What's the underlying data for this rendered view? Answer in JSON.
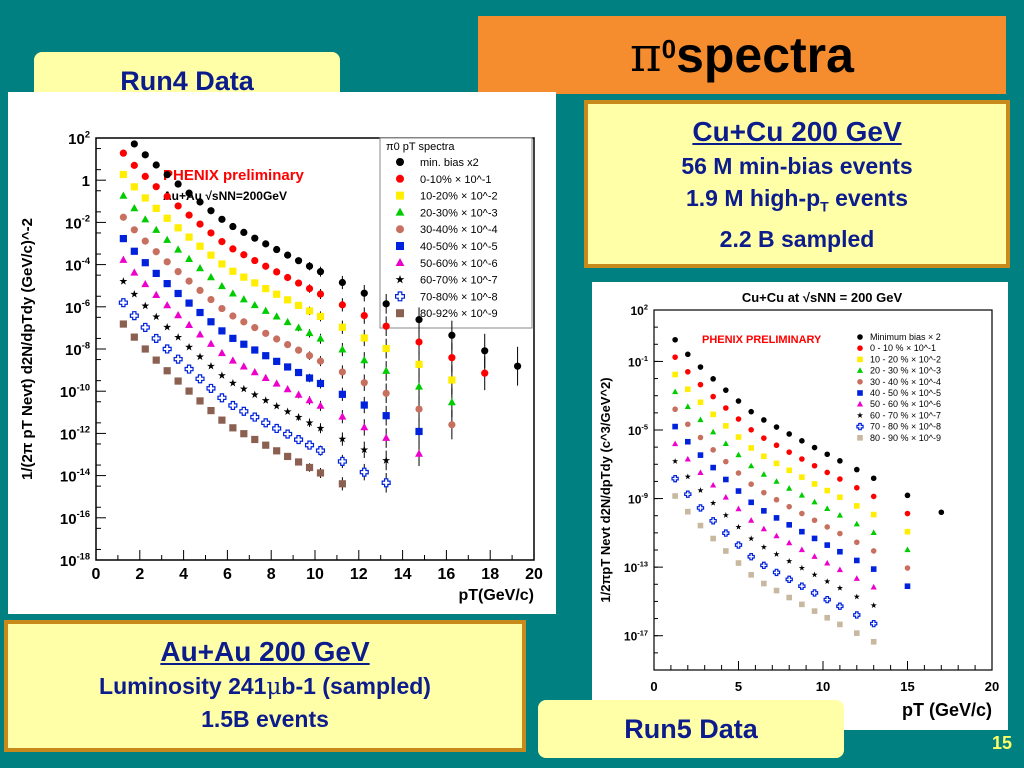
{
  "slide": {
    "title_symbol": "π",
    "title_sup": "0",
    "title_text": " spectra",
    "page_number": "15",
    "run4_label": "Run4 Data",
    "run5_label": "Run5 Data",
    "cucu_box": {
      "heading": "Cu+Cu 200 GeV",
      "line1": "56 M min-bias events",
      "line2_a": "1.9 M high-p",
      "line2_sub": "T",
      "line2_b": " events",
      "line3": "2.2 B sampled"
    },
    "auau_box": {
      "heading": "Au+Au 200 GeV",
      "line1_a": "Luminosity 241",
      "line1_mu": "μ",
      "line1_b": "b-1 (sampled)",
      "line2": "1.5B events"
    }
  },
  "chart_data": [
    {
      "type": "scatter",
      "y_scale": "log",
      "title": "",
      "annotation": "PHENIX preliminary",
      "system_label": "Au+Au √sNN=200GeV",
      "legend_title": "π0 pT spectra",
      "xlabel": "pT(GeV/c)",
      "ylabel": "1/(2π pT Nevt) d2N/dpTdy (GeV/c)^-2",
      "xlim": [
        0,
        20
      ],
      "ylim_exp": [
        -18,
        2
      ],
      "x_ticks": [
        "0",
        "2",
        "4",
        "6",
        "8",
        "10",
        "12",
        "14",
        "16",
        "18",
        "20"
      ],
      "y_ticks": [
        "10^2",
        "1",
        "10^-2",
        "10^-4",
        "10^-6",
        "10^-8",
        "10^-10",
        "10^-12",
        "10^-14",
        "10^-16",
        "10^-18"
      ],
      "legend_position": "top-right",
      "series": [
        {
          "name": "min. bias x2",
          "color": "#000000",
          "marker": "circle",
          "xmax": 19.3,
          "amp": 3.31,
          "A": 1.575,
          "B": 0.69,
          "C": 6.0,
          "D": 0.45
        },
        {
          "name": "0-10% × 10^-1",
          "color": "#ff0000",
          "marker": "circle",
          "xmax": 19.0,
          "amp": 2.31,
          "A": 1.575,
          "B": 0.7,
          "C": 6.0,
          "D": 0.45
        },
        {
          "name": "10-20% × 10^-2",
          "color": "#ffee00",
          "marker": "square",
          "xmax": 17.5,
          "amp": 1.31,
          "A": 1.575,
          "B": 0.71,
          "C": 6.0,
          "D": 0.45
        },
        {
          "name": "20-30% × 10^-3",
          "color": "#00cc00",
          "marker": "triangle",
          "xmax": 17.0,
          "amp": 0.31,
          "A": 1.575,
          "B": 0.72,
          "C": 6.0,
          "D": 0.45
        },
        {
          "name": "30-40% × 10^-4",
          "color": "#c87060",
          "marker": "circle",
          "xmax": 16.5,
          "amp": -0.69,
          "A": 1.575,
          "B": 0.73,
          "C": 6.0,
          "D": 0.45
        },
        {
          "name": "40-50% × 10^-5",
          "color": "#0022dd",
          "marker": "square",
          "xmax": 16.0,
          "amp": -1.69,
          "A": 1.575,
          "B": 0.74,
          "C": 6.0,
          "D": 0.45
        },
        {
          "name": "50-60% × 10^-6",
          "color": "#ee00cc",
          "marker": "triangle",
          "xmax": 15.0,
          "amp": -2.69,
          "A": 1.575,
          "B": 0.75,
          "C": 6.0,
          "D": 0.45
        },
        {
          "name": "60-70% × 10^-7",
          "color": "#000000",
          "marker": "star",
          "xmax": 14.0,
          "amp": -3.69,
          "A": 1.575,
          "B": 0.76,
          "C": 6.0,
          "D": 0.45
        },
        {
          "name": "70-80% × 10^-8",
          "color": "#0022dd",
          "marker": "cross-open",
          "xmax": 14.0,
          "amp": -4.69,
          "A": 1.575,
          "B": 0.77,
          "C": 6.0,
          "D": 0.45
        },
        {
          "name": "80-92% × 10^-9",
          "color": "#8b6050",
          "marker": "square",
          "xmax": 11.5,
          "amp": -5.69,
          "A": 1.575,
          "B": 0.78,
          "C": 6.0,
          "D": 0.45
        }
      ]
    },
    {
      "type": "scatter",
      "y_scale": "log",
      "title": "Cu+Cu at √sNN = 200 GeV",
      "annotation": "PHENIX PRELIMINARY",
      "xlabel": "pT (GeV/c)",
      "ylabel": "1/2πpT Nevt d2N/dpTdy (c^3/GeV^2)",
      "xlim": [
        0,
        20
      ],
      "ylim_exp": [
        -19,
        2
      ],
      "x_ticks": [
        "0",
        "5",
        "10",
        "15",
        "20"
      ],
      "y_ticks": [
        "10^2",
        "10^-1",
        "10^-5",
        "10^-9",
        "10^-13",
        "10^-17"
      ],
      "legend_position": "top-right",
      "series": [
        {
          "name": "Minimum bias × 2",
          "color": "#000000",
          "marker": "circle",
          "xmax": 17.0,
          "amp": 1.29,
          "A": 1.575,
          "B": 0.7,
          "C": 6.0,
          "D": 0.45
        },
        {
          "name": "0 - 10 % × 10^-1",
          "color": "#ff0000",
          "marker": "circle",
          "xmax": 15.0,
          "amp": 0.29,
          "A": 1.575,
          "B": 0.71,
          "C": 6.0,
          "D": 0.45
        },
        {
          "name": "10 - 20 % × 10^-2",
          "color": "#ffee00",
          "marker": "square",
          "xmax": 15.0,
          "amp": -0.71,
          "A": 1.575,
          "B": 0.72,
          "C": 6.0,
          "D": 0.45
        },
        {
          "name": "20 - 30 % × 10^-3",
          "color": "#00cc00",
          "marker": "triangle",
          "xmax": 15.0,
          "amp": -1.71,
          "A": 1.575,
          "B": 0.73,
          "C": 6.0,
          "D": 0.45
        },
        {
          "name": "30 - 40 % × 10^-4",
          "color": "#c87060",
          "marker": "circle",
          "xmax": 15.0,
          "amp": -2.71,
          "A": 1.575,
          "B": 0.74,
          "C": 6.0,
          "D": 0.45
        },
        {
          "name": "40 - 50 % × 10^-5",
          "color": "#0022dd",
          "marker": "square",
          "xmax": 15.0,
          "amp": -3.71,
          "A": 1.575,
          "B": 0.75,
          "C": 6.0,
          "D": 0.45
        },
        {
          "name": "50 - 60 % × 10^-6",
          "color": "#ee00cc",
          "marker": "triangle",
          "xmax": 13.0,
          "amp": -4.71,
          "A": 1.575,
          "B": 0.76,
          "C": 6.0,
          "D": 0.45
        },
        {
          "name": "60 - 70 % × 10^-7",
          "color": "#000000",
          "marker": "star",
          "xmax": 13.0,
          "amp": -5.71,
          "A": 1.575,
          "B": 0.77,
          "C": 6.0,
          "D": 0.45
        },
        {
          "name": "70 - 80 % × 10^-8",
          "color": "#0022dd",
          "marker": "cross-open",
          "xmax": 13.0,
          "amp": -6.71,
          "A": 1.575,
          "B": 0.78,
          "C": 6.0,
          "D": 0.45
        },
        {
          "name": "80 - 90 % × 10^-9",
          "color": "#c8b8a0",
          "marker": "square",
          "xmax": 13.0,
          "amp": -7.71,
          "A": 1.575,
          "B": 0.79,
          "C": 6.0,
          "D": 0.45
        }
      ]
    }
  ]
}
